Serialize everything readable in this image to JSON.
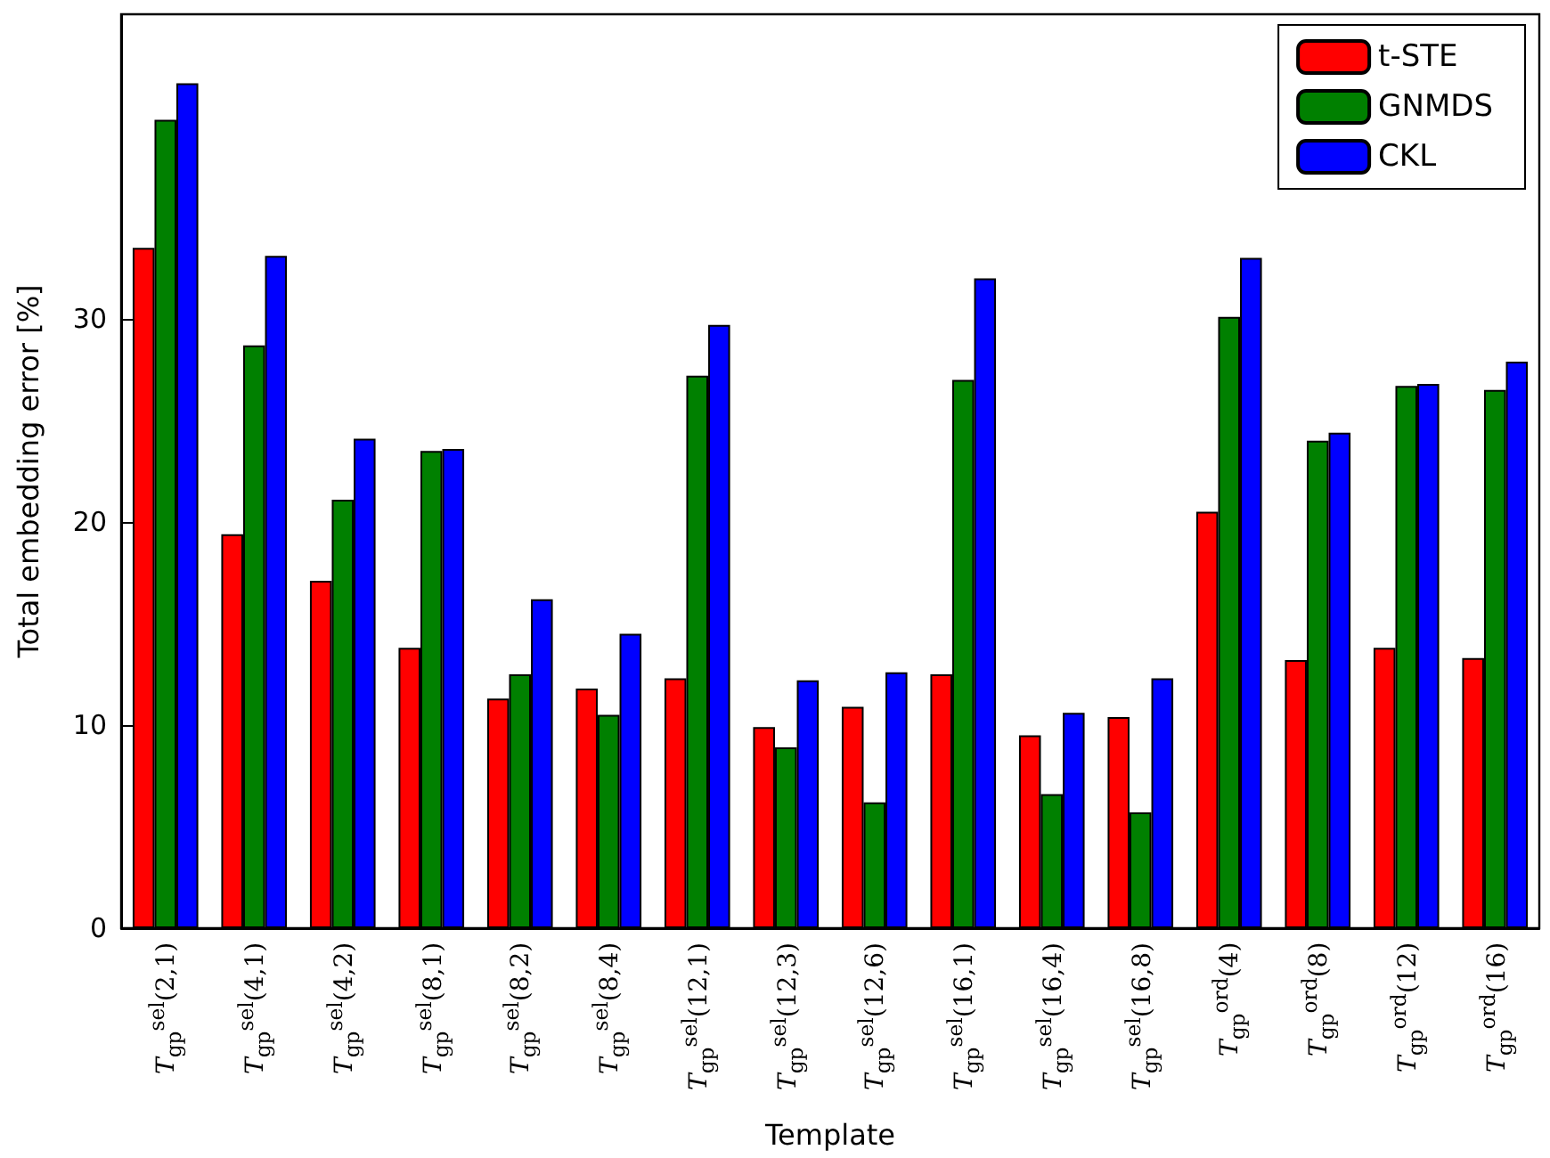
{
  "chart_data": {
    "type": "bar",
    "xlabel": "Template",
    "ylabel": "Total embedding error [%]",
    "categories": [
      "T$_{gp}$$^{sel}$(2,1)",
      "T$_{gp}$$^{sel}$(4,1)",
      "T$_{gp}$$^{sel}$(4,2)",
      "T$_{gp}$$^{sel}$(8,1)",
      "T$_{gp}$$^{sel}$(8,2)",
      "T$_{gp}$$^{sel}$(8,4)",
      "T$_{gp}$$^{sel}$(12,1)",
      "T$_{gp}$$^{sel}$(12,3)",
      "T$_{gp}$$^{sel}$(12,6)",
      "T$_{gp}$$^{sel}$(16,1)",
      "T$_{gp}$$^{sel}$(16,4)",
      "T$_{gp}$$^{sel}$(16,8)",
      "T$_{gp}$$^{ord}$(4)",
      "T$_{gp}$$^{ord}$(8)",
      "T$_{gp}$$^{ord}$(12)",
      "T$_{gp}$$^{ord}$(16)"
    ],
    "series": [
      {
        "name": "t-STE",
        "color": "#ff0000",
        "values": [
          33.5,
          19.4,
          17.1,
          13.8,
          11.3,
          11.8,
          12.3,
          9.9,
          10.9,
          12.5,
          9.5,
          10.4,
          20.5,
          13.2,
          13.8,
          13.3
        ]
      },
      {
        "name": "GNMDS",
        "color": "#008000",
        "values": [
          39.8,
          28.7,
          21.1,
          23.5,
          12.5,
          10.5,
          27.2,
          8.9,
          6.2,
          27.0,
          6.6,
          5.7,
          30.1,
          24.0,
          26.7,
          26.5
        ]
      },
      {
        "name": "CKL",
        "color": "#0000ff",
        "values": [
          41.6,
          33.1,
          24.1,
          23.6,
          16.2,
          14.5,
          29.7,
          12.2,
          12.6,
          32.0,
          10.6,
          12.3,
          33.0,
          24.4,
          26.8,
          27.9
        ]
      }
    ],
    "ylim": [
      0,
      45
    ],
    "yticks": [
      0,
      10,
      20,
      30
    ],
    "grid": false,
    "legend": "top right"
  }
}
